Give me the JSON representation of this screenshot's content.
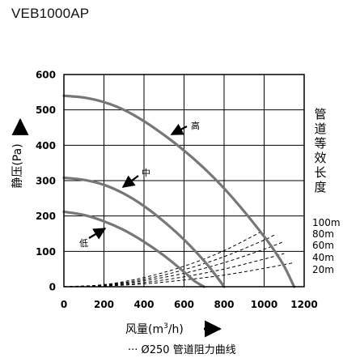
{
  "model": "VEB1000AP",
  "chart_data": {
    "type": "line",
    "title": "VEB1000AP",
    "xlabel": "风量(m³/h)",
    "ylabel": "静压(Pa)",
    "x_label_parts": {
      "main": "风量(m",
      "sup": "3",
      "tail": "/h)"
    },
    "xlim": [
      0,
      1200
    ],
    "ylim": [
      0,
      600
    ],
    "x_ticks": [
      0,
      200,
      400,
      600,
      800,
      1000,
      1200
    ],
    "y_ticks": [
      0,
      100,
      200,
      300,
      400,
      500,
      600
    ],
    "grid": true,
    "colors": {
      "fan_curve": "#777777",
      "duct_curve": "#000000",
      "axis": "#000000",
      "grid": "#000000"
    },
    "series": [
      {
        "name": "高",
        "style": "solid",
        "x": [
          0,
          100,
          200,
          300,
          400,
          500,
          600,
          700,
          800,
          900,
          1000,
          1050,
          1100,
          1150
        ],
        "y": [
          540,
          535,
          522,
          500,
          468,
          429,
          385,
          335,
          278,
          213,
          142,
          103,
          58,
          0
        ]
      },
      {
        "name": "中",
        "style": "solid",
        "x": [
          0,
          100,
          200,
          300,
          400,
          500,
          600,
          700,
          760,
          800
        ],
        "y": [
          308,
          302,
          288,
          263,
          228,
          184,
          133,
          73,
          31,
          0
        ]
      },
      {
        "name": "低",
        "style": "solid",
        "x": [
          0,
          100,
          200,
          300,
          400,
          500,
          600,
          650,
          700
        ],
        "y": [
          212,
          203,
          185,
          160,
          127,
          88,
          42,
          17,
          0
        ]
      }
    ],
    "duct_curves": {
      "legend": "Ø250 管道阻力曲线",
      "series_label": "管道等效长度",
      "style": "dashed",
      "curves": [
        {
          "name": "100m",
          "x": [
            0,
            200,
            400,
            600,
            800,
            1000
          ],
          "y": [
            0,
            6,
            26,
            58,
            102,
            160
          ]
        },
        {
          "name": "80m",
          "x": [
            0,
            200,
            400,
            600,
            800,
            1000,
            1050
          ],
          "y": [
            0,
            5,
            21,
            48,
            85,
            132,
            146
          ]
        },
        {
          "name": "60m",
          "x": [
            0,
            200,
            400,
            600,
            800,
            1000,
            1100
          ],
          "y": [
            0,
            4,
            17,
            38,
            68,
            106,
            128
          ]
        },
        {
          "name": "40m",
          "x": [
            0,
            200,
            400,
            600,
            800,
            1000,
            1100
          ],
          "y": [
            0,
            3,
            12,
            28,
            50,
            78,
            94
          ]
        },
        {
          "name": "20m",
          "x": [
            0,
            200,
            400,
            600,
            800,
            1000,
            1150
          ],
          "y": [
            0,
            2,
            8,
            19,
            33,
            52,
            68
          ]
        }
      ]
    }
  }
}
